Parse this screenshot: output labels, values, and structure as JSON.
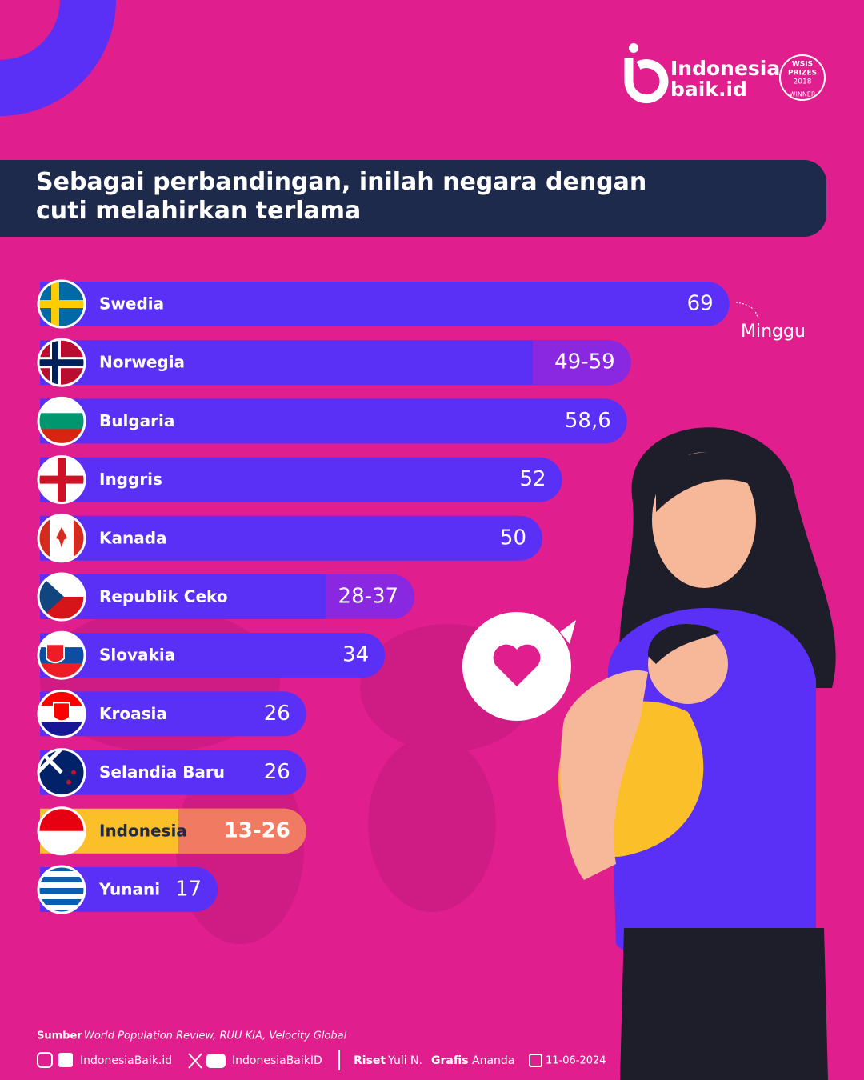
{
  "brand": {
    "line1": "Indonesia",
    "line2": "baik.id",
    "award": [
      "WSIS",
      "PRIZES",
      "2018",
      "WINNER"
    ]
  },
  "chart_data": {
    "type": "bar",
    "orientation": "horizontal",
    "title": "Sebagai perbandingan, inilah negara dengan cuti melahirkan terlama",
    "unit": "Minggu",
    "categories": [
      "Swedia",
      "Norwegia",
      "Bulgaria",
      "Inggris",
      "Kanada",
      "Republik Ceko",
      "Slovakia",
      "Kroasia",
      "Selandia Baru",
      "Indonesia",
      "Yunani"
    ],
    "values": [
      69,
      59,
      58.6,
      52,
      50,
      37,
      34,
      26,
      26,
      26,
      17
    ],
    "low": [
      null,
      49,
      null,
      null,
      null,
      28,
      null,
      null,
      null,
      13,
      null
    ],
    "value_labels": [
      "69",
      "49-59",
      "58,6",
      "52",
      "50",
      "28-37",
      "34",
      "26",
      "26",
      "13-26",
      "17"
    ],
    "colors": [
      "#5a2ff6",
      "#5a2ff6",
      "#5a2ff6",
      "#5a2ff6",
      "#5a2ff6",
      "#5a2ff6",
      "#5a2ff6",
      "#5a2ff6",
      "#5a2ff6",
      "#fbbf2a",
      "#5a2ff6"
    ],
    "range_colors": [
      null,
      "#8a27e0",
      null,
      null,
      null,
      "#8a27e0",
      null,
      null,
      null,
      "#f07a62",
      null
    ]
  },
  "footer": {
    "source_label": "Sumber",
    "source": "World Population Review, RUU KIA, Velocity Global",
    "handle1": "IndonesiaBaik.id",
    "handle2": "IndonesiaBaikID",
    "research_label": "Riset",
    "research": "Yuli N.",
    "graphic_label": "Grafis",
    "graphic": "Ananda",
    "date": "11-06-2024"
  }
}
